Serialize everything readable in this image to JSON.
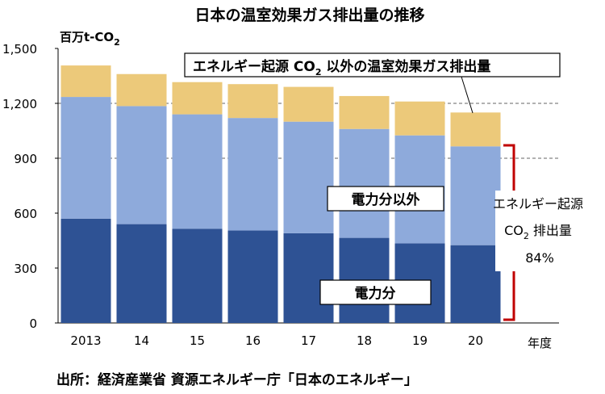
{
  "chart_data": {
    "type": "bar",
    "stacked": true,
    "title": "日本の温室効果ガス排出量の推移",
    "ylabel": "百万t-CO",
    "ylabel_sub": "2",
    "xlabel": "年度",
    "categories": [
      "2013",
      "14",
      "15",
      "16",
      "17",
      "18",
      "19",
      "20"
    ],
    "ylim": [
      0,
      1500
    ],
    "yticks": [
      "0",
      "300",
      "600",
      "900",
      "1,200",
      "1,500"
    ],
    "grid": "dashed lines at 900 and 1,200",
    "series": [
      {
        "name": "電力分",
        "color": "#2e5294",
        "values": [
          570,
          540,
          515,
          505,
          490,
          465,
          435,
          425
        ]
      },
      {
        "name": "電力分以外",
        "color": "#8eaadb",
        "values": [
          665,
          645,
          625,
          615,
          610,
          595,
          590,
          540
        ]
      },
      {
        "name": "エネルギー起源 CO2 以外の温室効果ガス排出量",
        "color": "#ecc97a",
        "values": [
          172,
          175,
          176,
          185,
          190,
          180,
          185,
          185
        ]
      }
    ],
    "annotations": {
      "other_ghg_label": {
        "pre": "エネルギー起源 CO",
        "sub": "2",
        "post": " 以外の温室効果ガス排出量"
      },
      "non_power_label": "電力分以外",
      "power_label": "電力分",
      "bracket_line1": "エネルギー起源",
      "bracket_line2_pre": "CO",
      "bracket_line2_sub": "2",
      "bracket_line2_post": " 排出量",
      "bracket_line3": "84%"
    },
    "source": "出所：経済産業省 資源エネルギー庁「日本のエネルギー」"
  }
}
